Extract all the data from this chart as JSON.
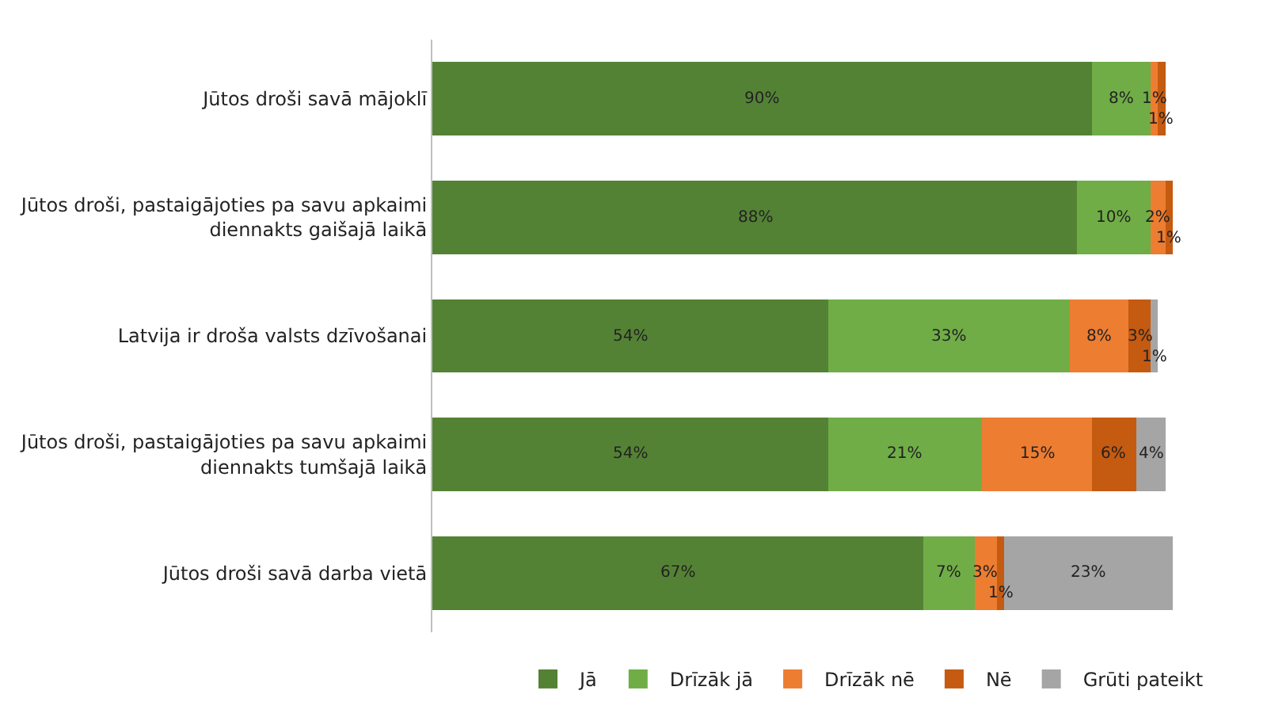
{
  "chart_data": {
    "type": "bar",
    "orientation": "horizontal",
    "stacked": true,
    "legend": "bottom",
    "categories": [
      "Jūtos droši savā mājoklī",
      "Jūtos droši, pastaigājoties pa savu apkaimi diennakts gaišajā laikā",
      "Latvija ir droša valsts dzīvošanai",
      "Jūtos droši, pastaigājoties pa savu apkaimi diennakts tumšajā laikā",
      "Jūtos droši savā darba vietā"
    ],
    "series": [
      {
        "name": "Jā",
        "color": "#548235",
        "values": [
          90,
          88,
          54,
          54,
          67
        ],
        "value_labels": [
          "90%",
          "88%",
          "54%",
          "54%",
          "67%"
        ]
      },
      {
        "name": "Drīzāk jā",
        "color": "#70ad47",
        "values": [
          8,
          10,
          33,
          21,
          7
        ],
        "value_labels": [
          "8%",
          "10%",
          "33%",
          "21%",
          "7%"
        ]
      },
      {
        "name": "Drīzāk nē",
        "color": "#ed7d31",
        "values": [
          1,
          2,
          8,
          15,
          3
        ],
        "value_labels": [
          "1%",
          "2%",
          "8%",
          "15%",
          "3%"
        ]
      },
      {
        "name": "Nē",
        "color": "#c55a11",
        "values": [
          1,
          1,
          3,
          6,
          1
        ],
        "value_labels": [
          "1%",
          "1%",
          "3%",
          "6%",
          "1%"
        ]
      },
      {
        "name": "Grūti pateikt",
        "color": "#a5a5a5",
        "values": [
          null,
          null,
          1,
          4,
          23
        ],
        "value_labels": [
          null,
          null,
          "1%",
          "4%",
          "23%"
        ]
      }
    ]
  }
}
